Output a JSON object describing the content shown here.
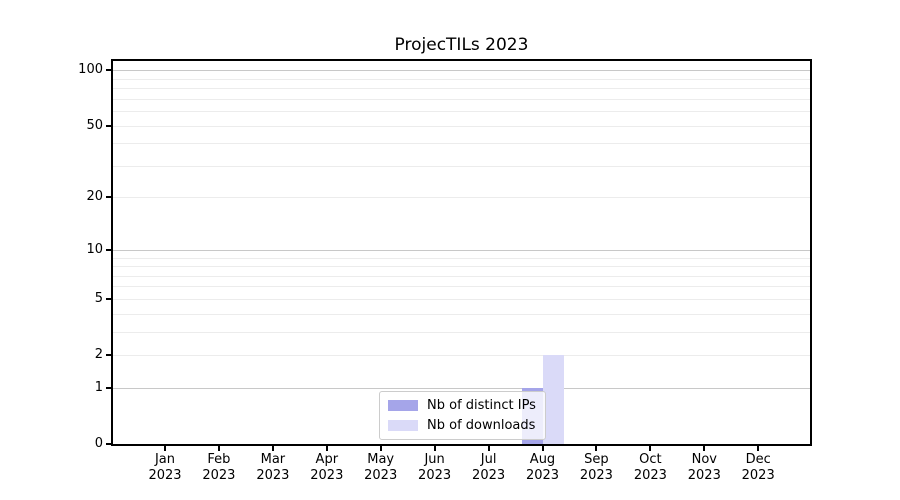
{
  "figure": {
    "title": "ProjecTILs 2023"
  },
  "colors": {
    "background": "#ffffff",
    "distinct_ips": "#a5a5e9",
    "downloads": "#dadaf8",
    "grid_major": "#c8c8c8",
    "grid_minor": "#ececec",
    "axis": "#000000",
    "legend_border": "#cccccc",
    "text": "#000000"
  },
  "legend": {
    "items": [
      {
        "label": "Nb of distinct IPs",
        "swatch_color": "#a5a5e9"
      },
      {
        "label": "Nb of downloads",
        "swatch_color": "#dadaf8"
      }
    ]
  },
  "chart_data": {
    "type": "bar",
    "title": "ProjecTILs 2023",
    "categories": [
      "Jan 2023",
      "Feb 2023",
      "Mar 2023",
      "Apr 2023",
      "May 2023",
      "Jun 2023",
      "Jul 2023",
      "Aug 2023",
      "Sep 2023",
      "Oct 2023",
      "Nov 2023",
      "Dec 2023"
    ],
    "series": [
      {
        "name": "Nb of distinct IPs",
        "color": "#a5a5e9",
        "values": [
          0,
          0,
          0,
          0,
          0,
          0,
          0,
          1,
          0,
          0,
          0,
          0
        ]
      },
      {
        "name": "Nb of downloads",
        "color": "#dadaf8",
        "values": [
          0,
          0,
          0,
          0,
          0,
          0,
          0,
          2,
          0,
          0,
          0,
          0
        ]
      }
    ],
    "xlabel": "",
    "ylabel": "",
    "yscale": "log1p",
    "ylim": [
      0,
      112
    ],
    "y_tick_values": [
      0,
      1,
      2,
      5,
      10,
      20,
      50,
      100
    ],
    "y_tick_labels": [
      "0",
      "1",
      "2",
      "5",
      "10",
      "20",
      "50",
      "100"
    ],
    "grid": "horizontal",
    "grid_major_values": [
      1,
      10,
      100
    ],
    "grid_minor_values": [
      2,
      3,
      4,
      5,
      6,
      7,
      8,
      9,
      20,
      30,
      40,
      50,
      60,
      70,
      80,
      90
    ],
    "legend_position": "inside-bottom-center"
  }
}
